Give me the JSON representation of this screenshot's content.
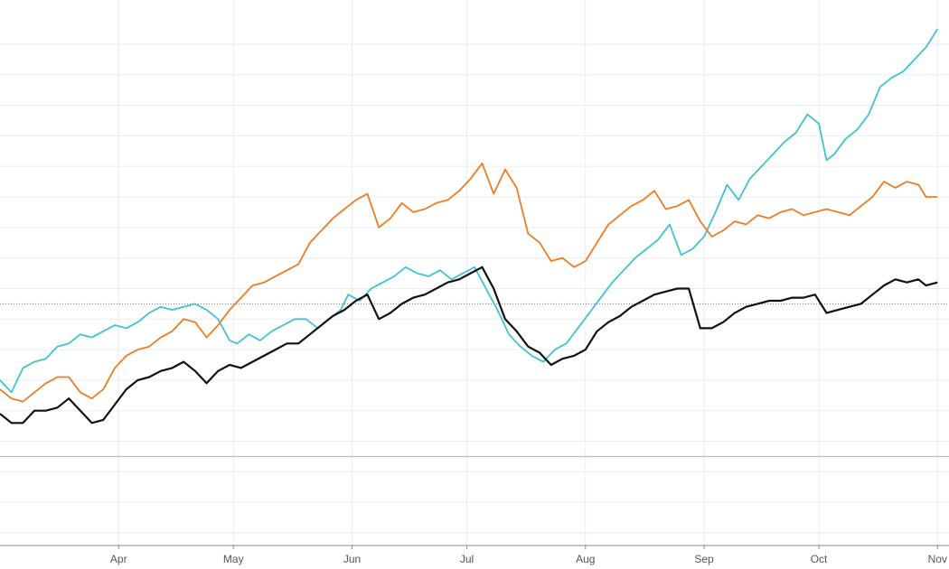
{
  "chart_data": {
    "type": "line",
    "title": "",
    "xlabel": "",
    "ylabel": "",
    "x_ticks": [
      "Apr",
      "May",
      "Jun",
      "Jul",
      "Aug",
      "Sep",
      "Oct",
      "Nov"
    ],
    "x_tick_days": [
      31,
      61,
      92,
      122,
      153,
      184,
      214,
      245
    ],
    "x_range": [
      0,
      248
    ],
    "y_range": [
      -25,
      140
    ],
    "grid": true,
    "zero_line": 0,
    "reference_line": 50,
    "legend": "none",
    "colors": {
      "cyan": "#3fc3d4",
      "orange": "#f07c22",
      "black": "#111111",
      "grid": "#e6eef2",
      "axis": "#b9b9b9",
      "ref": "#6f6f6f"
    },
    "series": [
      {
        "color": "#3fc3d4",
        "points": [
          [
            0,
            25
          ],
          [
            3,
            21
          ],
          [
            6,
            29
          ],
          [
            9,
            31
          ],
          [
            12,
            32
          ],
          [
            15,
            36
          ],
          [
            18,
            37
          ],
          [
            21,
            40
          ],
          [
            24,
            39
          ],
          [
            27,
            41
          ],
          [
            30,
            43
          ],
          [
            33,
            42
          ],
          [
            36,
            44
          ],
          [
            39,
            47
          ],
          [
            42,
            49
          ],
          [
            45,
            48
          ],
          [
            48,
            49
          ],
          [
            51,
            50
          ],
          [
            54,
            48
          ],
          [
            57,
            45
          ],
          [
            60,
            38
          ],
          [
            62,
            37
          ],
          [
            65,
            40
          ],
          [
            68,
            38
          ],
          [
            71,
            41
          ],
          [
            74,
            43
          ],
          [
            77,
            45
          ],
          [
            80,
            45
          ],
          [
            83,
            42
          ],
          [
            86,
            45
          ],
          [
            89,
            48
          ],
          [
            91,
            53
          ],
          [
            94,
            51
          ],
          [
            97,
            55
          ],
          [
            100,
            57
          ],
          [
            103,
            59
          ],
          [
            106,
            62
          ],
          [
            109,
            60
          ],
          [
            112,
            59
          ],
          [
            115,
            61
          ],
          [
            118,
            58
          ],
          [
            121,
            60
          ],
          [
            124,
            62
          ],
          [
            127,
            55
          ],
          [
            130,
            48
          ],
          [
            133,
            40
          ],
          [
            136,
            36
          ],
          [
            139,
            33
          ],
          [
            142,
            31
          ],
          [
            145,
            35
          ],
          [
            148,
            37
          ],
          [
            151,
            42
          ],
          [
            154,
            47
          ],
          [
            157,
            52
          ],
          [
            160,
            57
          ],
          [
            163,
            61
          ],
          [
            166,
            65
          ],
          [
            169,
            68
          ],
          [
            172,
            71
          ],
          [
            175,
            76
          ],
          [
            178,
            66
          ],
          [
            181,
            68
          ],
          [
            184,
            72
          ],
          [
            187,
            80
          ],
          [
            190,
            89
          ],
          [
            193,
            84
          ],
          [
            196,
            91
          ],
          [
            199,
            95
          ],
          [
            202,
            99
          ],
          [
            205,
            103
          ],
          [
            208,
            106
          ],
          [
            211,
            112
          ],
          [
            214,
            109
          ],
          [
            216,
            97
          ],
          [
            218,
            99
          ],
          [
            221,
            104
          ],
          [
            224,
            107
          ],
          [
            227,
            112
          ],
          [
            230,
            121
          ],
          [
            233,
            124
          ],
          [
            236,
            126
          ],
          [
            239,
            130
          ],
          [
            242,
            134
          ],
          [
            245,
            140
          ]
        ]
      },
      {
        "color": "#f07c22",
        "points": [
          [
            0,
            22
          ],
          [
            3,
            19
          ],
          [
            6,
            18
          ],
          [
            9,
            21
          ],
          [
            12,
            24
          ],
          [
            15,
            26
          ],
          [
            18,
            26
          ],
          [
            21,
            21
          ],
          [
            24,
            19
          ],
          [
            27,
            22
          ],
          [
            30,
            29
          ],
          [
            33,
            33
          ],
          [
            36,
            35
          ],
          [
            39,
            36
          ],
          [
            42,
            39
          ],
          [
            45,
            41
          ],
          [
            48,
            45
          ],
          [
            51,
            44
          ],
          [
            54,
            39
          ],
          [
            57,
            43
          ],
          [
            60,
            48
          ],
          [
            63,
            52
          ],
          [
            66,
            56
          ],
          [
            69,
            57
          ],
          [
            72,
            59
          ],
          [
            75,
            61
          ],
          [
            78,
            63
          ],
          [
            81,
            70
          ],
          [
            84,
            74
          ],
          [
            87,
            78
          ],
          [
            90,
            81
          ],
          [
            93,
            84
          ],
          [
            96,
            86
          ],
          [
            99,
            75
          ],
          [
            102,
            78
          ],
          [
            105,
            83
          ],
          [
            108,
            80
          ],
          [
            111,
            81
          ],
          [
            114,
            83
          ],
          [
            117,
            84
          ],
          [
            120,
            87
          ],
          [
            123,
            91
          ],
          [
            126,
            96
          ],
          [
            129,
            86
          ],
          [
            132,
            94
          ],
          [
            135,
            88
          ],
          [
            138,
            73
          ],
          [
            141,
            70
          ],
          [
            144,
            64
          ],
          [
            147,
            65
          ],
          [
            150,
            62
          ],
          [
            153,
            64
          ],
          [
            156,
            70
          ],
          [
            159,
            76
          ],
          [
            162,
            79
          ],
          [
            165,
            82
          ],
          [
            168,
            84
          ],
          [
            171,
            87
          ],
          [
            174,
            81
          ],
          [
            177,
            82
          ],
          [
            180,
            84
          ],
          [
            183,
            77
          ],
          [
            186,
            72
          ],
          [
            189,
            74
          ],
          [
            192,
            77
          ],
          [
            195,
            76
          ],
          [
            198,
            79
          ],
          [
            201,
            78
          ],
          [
            204,
            80
          ],
          [
            207,
            81
          ],
          [
            210,
            79
          ],
          [
            213,
            80
          ],
          [
            216,
            81
          ],
          [
            219,
            80
          ],
          [
            222,
            79
          ],
          [
            225,
            82
          ],
          [
            228,
            85
          ],
          [
            231,
            90
          ],
          [
            234,
            88
          ],
          [
            237,
            90
          ],
          [
            240,
            89
          ],
          [
            242,
            85
          ],
          [
            245,
            85
          ]
        ]
      },
      {
        "color": "#111111",
        "points": [
          [
            0,
            14
          ],
          [
            3,
            11
          ],
          [
            6,
            11
          ],
          [
            9,
            15
          ],
          [
            12,
            15
          ],
          [
            15,
            16
          ],
          [
            18,
            19
          ],
          [
            21,
            15
          ],
          [
            24,
            11
          ],
          [
            27,
            12
          ],
          [
            30,
            17
          ],
          [
            33,
            22
          ],
          [
            36,
            25
          ],
          [
            39,
            26
          ],
          [
            42,
            28
          ],
          [
            45,
            29
          ],
          [
            48,
            31
          ],
          [
            51,
            28
          ],
          [
            54,
            24
          ],
          [
            57,
            28
          ],
          [
            60,
            30
          ],
          [
            63,
            29
          ],
          [
            66,
            31
          ],
          [
            69,
            33
          ],
          [
            72,
            35
          ],
          [
            75,
            37
          ],
          [
            78,
            37
          ],
          [
            81,
            40
          ],
          [
            84,
            43
          ],
          [
            87,
            46
          ],
          [
            90,
            48
          ],
          [
            93,
            51
          ],
          [
            96,
            53
          ],
          [
            99,
            45
          ],
          [
            102,
            47
          ],
          [
            105,
            50
          ],
          [
            108,
            52
          ],
          [
            111,
            53
          ],
          [
            114,
            55
          ],
          [
            117,
            57
          ],
          [
            120,
            58
          ],
          [
            123,
            60
          ],
          [
            126,
            62
          ],
          [
            129,
            55
          ],
          [
            132,
            45
          ],
          [
            135,
            41
          ],
          [
            138,
            36
          ],
          [
            141,
            34
          ],
          [
            144,
            30
          ],
          [
            147,
            32
          ],
          [
            150,
            33
          ],
          [
            153,
            35
          ],
          [
            156,
            41
          ],
          [
            159,
            44
          ],
          [
            162,
            46
          ],
          [
            165,
            49
          ],
          [
            168,
            51
          ],
          [
            171,
            53
          ],
          [
            174,
            54
          ],
          [
            177,
            55
          ],
          [
            180,
            55
          ],
          [
            183,
            42
          ],
          [
            186,
            42
          ],
          [
            189,
            44
          ],
          [
            192,
            47
          ],
          [
            195,
            49
          ],
          [
            198,
            50
          ],
          [
            201,
            51
          ],
          [
            204,
            51
          ],
          [
            207,
            52
          ],
          [
            210,
            52
          ],
          [
            213,
            53
          ],
          [
            216,
            47
          ],
          [
            219,
            48
          ],
          [
            222,
            49
          ],
          [
            225,
            50
          ],
          [
            228,
            53
          ],
          [
            231,
            56
          ],
          [
            234,
            58
          ],
          [
            237,
            57
          ],
          [
            240,
            58
          ],
          [
            242,
            56
          ],
          [
            245,
            57
          ]
        ]
      }
    ]
  }
}
